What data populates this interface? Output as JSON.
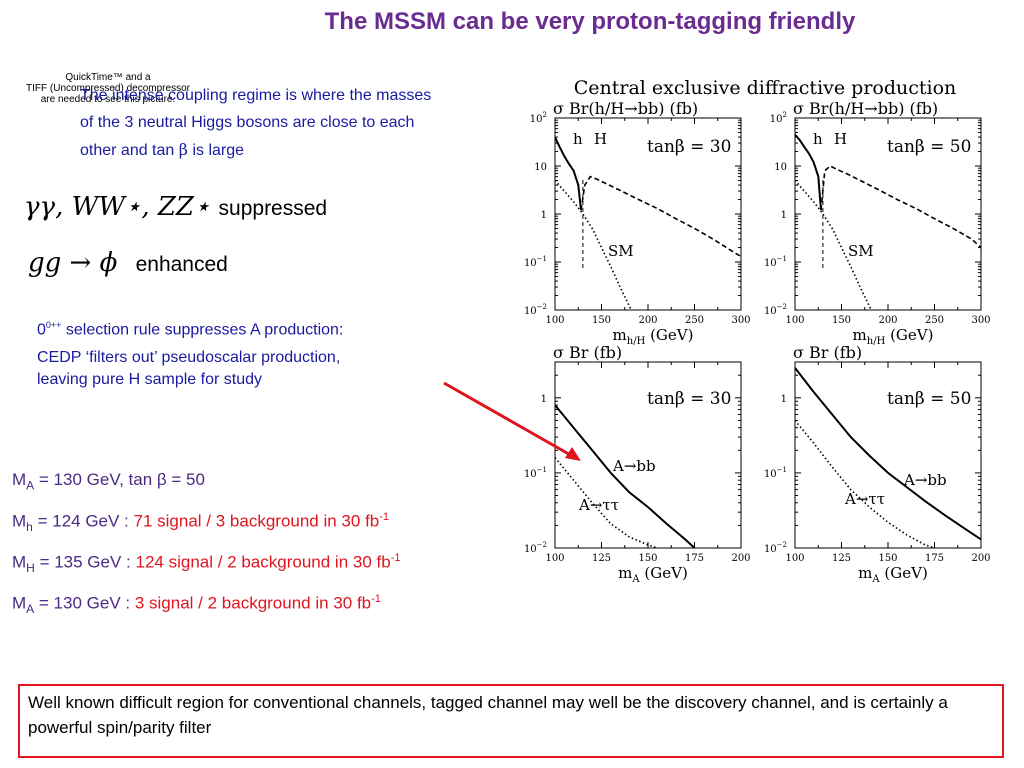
{
  "slide": {
    "title": "The MSSM can be very proton-tagging friendly",
    "quicktime_notice": [
      "QuickTime™ and a",
      "TIFF (Uncompressed) decompressor",
      "are needed to see this picture."
    ],
    "intro_lines": [
      "The intense coupling regime is where the masses",
      "of the 3 neutral Higgs bosons are close to each"
    ],
    "intro_last_prefix": "other and tan ",
    "intro_last_beta": "β",
    "intro_last_suffix": " is large",
    "math1": "γγ, WW⋆, ZZ⋆",
    "math1_word": "suppressed",
    "math2": "gg → ϕ",
    "math2_word": "enhanced",
    "selection_sup": "0++",
    "selection_rule": " selection rule suppresses A production:",
    "cedp_lines": [
      "CEDP ‘filters out’ pseudoscalar production,",
      "leaving pure H sample for study"
    ],
    "results": [
      {
        "sym": "M",
        "sub": "A",
        "main": " = 130 GeV, tan β = 50",
        "red": "",
        "sup": ""
      },
      {
        "sym": "M",
        "sub": "h",
        "main": " = 124 GeV : ",
        "red": "71 signal / 3 background in 30 fb",
        "sup": "-1"
      },
      {
        "sym": "M",
        "sub": "H",
        "main": " = 135 GeV : ",
        "red": "124 signal / 2 background in 30 fb",
        "sup": "-1"
      },
      {
        "sym": "M",
        "sub": "A",
        "main": " = 130 GeV : ",
        "red": "3 signal / 2 background in 30 fb",
        "sup": "-1"
      }
    ],
    "box_text": "Well known difficult region for conventional channels, tagged channel may well be the discovery channel, and is certainly a powerful spin/parity filter",
    "colors": {
      "title": "#6b2c91",
      "blue_text": "#1a1aa0",
      "results_text": "#4b2a86",
      "red": "#e0141e"
    }
  },
  "chart_figure_title": "Central exclusive diffractive production",
  "chart_data": [
    {
      "type": "line",
      "panel": "top-left",
      "ylabel": "σ Br(h/H→bb)  (fb)",
      "xlabel": "m h/H  (GeV)",
      "xlabel_main": "m",
      "xlabel_sub": "h/H",
      "xlabel_unit": "  (GeV)",
      "annotation": "tanβ = 30",
      "labels": [
        "h",
        "H",
        "SM"
      ],
      "yscale": "log",
      "xlim": [
        100,
        300
      ],
      "ylim": [
        0.01,
        100
      ],
      "xticks": [
        "100",
        "150",
        "200",
        "250",
        "300"
      ],
      "yticks": [
        {
          "v": 100,
          "base": "10",
          "exp": "2"
        },
        {
          "v": 10,
          "base": "10",
          "exp": ""
        },
        {
          "v": 1,
          "base": "1",
          "exp": ""
        },
        {
          "v": 0.1,
          "base": "10",
          "exp": "−1"
        },
        {
          "v": 0.01,
          "base": "10",
          "exp": "−2"
        }
      ],
      "series": [
        {
          "style": "solid",
          "x": [
            100,
            105,
            110,
            115,
            120,
            125,
            128
          ],
          "y": [
            40,
            25,
            16,
            11,
            8,
            4,
            1.2
          ]
        },
        {
          "style": "dashed",
          "x": [
            128,
            132,
            138,
            145,
            155,
            170,
            190,
            210,
            230,
            250,
            270,
            290,
            300
          ],
          "y": [
            1.2,
            4,
            6,
            5.3,
            4.3,
            3.1,
            2,
            1.3,
            0.8,
            0.5,
            0.3,
            0.17,
            0.13
          ]
        },
        {
          "style": "dotted",
          "x": [
            100,
            110,
            120,
            130,
            140,
            150,
            160,
            170,
            180,
            190
          ],
          "y": [
            5,
            3,
            1.8,
            1,
            0.5,
            0.2,
            0.08,
            0.03,
            0.012,
            0.005
          ]
        }
      ],
      "vline_x": 130
    },
    {
      "type": "line",
      "panel": "top-right",
      "ylabel": "σ Br(h/H→bb)  (fb)",
      "xlabel": "m h/H  (GeV)",
      "xlabel_main": "m",
      "xlabel_sub": "h/H",
      "xlabel_unit": "  (GeV)",
      "annotation": "tanβ = 50",
      "labels": [
        "h",
        "H",
        "SM"
      ],
      "yscale": "log",
      "xlim": [
        100,
        300
      ],
      "ylim": [
        0.01,
        100
      ],
      "xticks": [
        "100",
        "150",
        "200",
        "250",
        "300"
      ],
      "yticks": [
        {
          "v": 100,
          "base": "10",
          "exp": "2"
        },
        {
          "v": 10,
          "base": "10",
          "exp": ""
        },
        {
          "v": 1,
          "base": "1",
          "exp": ""
        },
        {
          "v": 0.1,
          "base": "10",
          "exp": "−1"
        },
        {
          "v": 0.01,
          "base": "10",
          "exp": "−2"
        }
      ],
      "series": [
        {
          "style": "solid",
          "x": [
            100,
            105,
            110,
            115,
            120,
            125,
            128
          ],
          "y": [
            45,
            35,
            25,
            18,
            12,
            6,
            1.2
          ]
        },
        {
          "style": "dashed",
          "x": [
            128,
            132,
            138,
            145,
            155,
            170,
            190,
            210,
            230,
            250,
            270,
            290,
            300
          ],
          "y": [
            1.2,
            8,
            10,
            8.5,
            7,
            5,
            3.2,
            2,
            1.3,
            0.8,
            0.5,
            0.3,
            0.2
          ]
        },
        {
          "style": "dotted",
          "x": [
            100,
            110,
            120,
            130,
            140,
            150,
            160,
            170,
            180,
            190
          ],
          "y": [
            5,
            3,
            1.8,
            1,
            0.5,
            0.2,
            0.08,
            0.03,
            0.012,
            0.005
          ]
        }
      ],
      "vline_x": 130
    },
    {
      "type": "line",
      "panel": "bottom-left",
      "ylabel": "σ Br  (fb)",
      "xlabel": "m A (GeV)",
      "xlabel_main": "m",
      "xlabel_sub": "A",
      "xlabel_unit": " (GeV)",
      "annotation": "tanβ = 30",
      "labels": [
        "A→bb",
        "A→ττ"
      ],
      "yscale": "log",
      "xlim": [
        100,
        200
      ],
      "ylim": [
        0.01,
        3
      ],
      "xticks": [
        "100",
        "125",
        "150",
        "175",
        "200"
      ],
      "yticks": [
        {
          "v": 1,
          "base": "1",
          "exp": ""
        },
        {
          "v": 0.1,
          "base": "10",
          "exp": "−1"
        },
        {
          "v": 0.01,
          "base": "10",
          "exp": "−2"
        }
      ],
      "series": [
        {
          "style": "solid",
          "x": [
            100,
            110,
            120,
            130,
            140,
            150,
            160,
            170,
            175
          ],
          "y": [
            0.8,
            0.4,
            0.2,
            0.1,
            0.055,
            0.035,
            0.021,
            0.013,
            0.01
          ]
        },
        {
          "style": "dotted",
          "x": [
            100,
            110,
            120,
            130,
            140,
            150,
            155
          ],
          "y": [
            0.16,
            0.08,
            0.04,
            0.021,
            0.014,
            0.011,
            0.01
          ]
        }
      ]
    },
    {
      "type": "line",
      "panel": "bottom-right",
      "ylabel": "σ Br  (fb)",
      "xlabel": "m A (GeV)",
      "xlabel_main": "m",
      "xlabel_sub": "A",
      "xlabel_unit": " (GeV)",
      "annotation": "tanβ = 50",
      "labels": [
        "A→bb",
        "A→ττ"
      ],
      "yscale": "log",
      "xlim": [
        100,
        200
      ],
      "ylim": [
        0.01,
        3
      ],
      "xticks": [
        "100",
        "125",
        "150",
        "175",
        "200"
      ],
      "yticks": [
        {
          "v": 1,
          "base": "1",
          "exp": ""
        },
        {
          "v": 0.1,
          "base": "10",
          "exp": "−1"
        },
        {
          "v": 0.01,
          "base": "10",
          "exp": "−2"
        }
      ],
      "series": [
        {
          "style": "solid",
          "x": [
            100,
            110,
            120,
            130,
            140,
            150,
            160,
            170,
            180,
            190,
            200
          ],
          "y": [
            2.5,
            1.2,
            0.6,
            0.3,
            0.17,
            0.1,
            0.065,
            0.042,
            0.028,
            0.019,
            0.013
          ]
        },
        {
          "style": "dotted",
          "x": [
            100,
            110,
            120,
            130,
            140,
            150,
            160,
            170,
            175
          ],
          "y": [
            0.5,
            0.25,
            0.12,
            0.06,
            0.035,
            0.022,
            0.015,
            0.011,
            0.01
          ]
        }
      ]
    }
  ]
}
